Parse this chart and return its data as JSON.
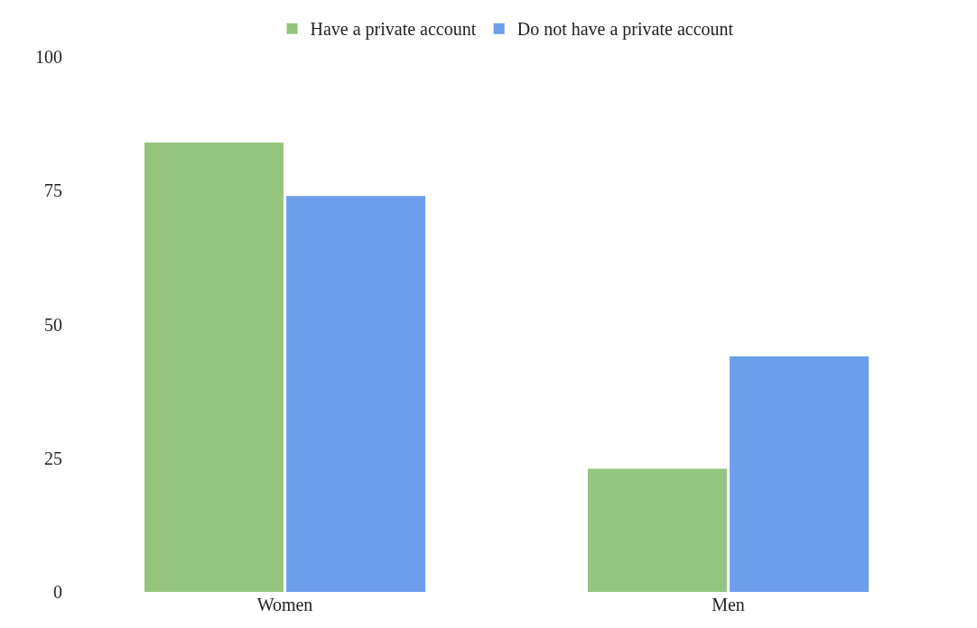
{
  "chart_data": {
    "type": "bar",
    "categories": [
      "Women",
      "Men"
    ],
    "series": [
      {
        "name": "Have a private account",
        "color": "#94c47d",
        "values": [
          84,
          23
        ]
      },
      {
        "name": "Do not have a private account",
        "color": "#6d9eeb",
        "values": [
          74,
          44
        ]
      }
    ],
    "ylim": [
      0,
      100
    ],
    "yticks": [
      0,
      25,
      50,
      75,
      100
    ],
    "legend": "top"
  }
}
